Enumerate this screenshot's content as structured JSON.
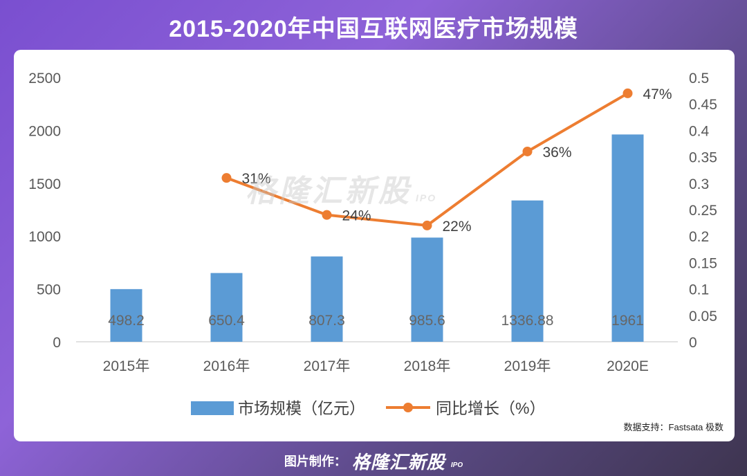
{
  "header": {
    "title": "2015-2020年中国互联网医疗市场规模"
  },
  "source": "数据支持：Fastsata 极数",
  "footer": {
    "label": "图片制作：",
    "brand": "格隆汇新股",
    "brand_sub": "IPO"
  },
  "watermark": {
    "text": "格隆汇新股",
    "sub": "IPO"
  },
  "colors": {
    "bar": "#5b9bd5",
    "line": "#ed7d31",
    "axis_text": "#595959",
    "axis_line": "#d9d9d9"
  },
  "chart_data": {
    "type": "bar",
    "categories": [
      "2015年",
      "2016年",
      "2017年",
      "2018年",
      "2019年",
      "2020E"
    ],
    "series": [
      {
        "name": "市场规模（亿元）",
        "type": "bar",
        "axis": "left",
        "values": [
          498.2,
          650.4,
          807.3,
          985.6,
          1336.88,
          1961
        ],
        "value_labels": [
          "498.2",
          "650.4",
          "807.3",
          "985.6",
          "1336.88",
          "1961"
        ]
      },
      {
        "name": "同比增长（%）",
        "type": "line",
        "axis": "right",
        "values": [
          null,
          0.31,
          0.24,
          0.22,
          0.36,
          0.47
        ],
        "value_labels": [
          "",
          "31%",
          "24%",
          "22%",
          "36%",
          "47%"
        ]
      }
    ],
    "y_left": {
      "min": 0,
      "max": 2500,
      "ticks": [
        "0",
        "500",
        "1000",
        "1500",
        "2000",
        "2500"
      ]
    },
    "y_right": {
      "min": 0,
      "max": 0.5,
      "ticks": [
        "0",
        "0.05",
        "0.1",
        "0.15",
        "0.2",
        "0.25",
        "0.3",
        "0.35",
        "0.4",
        "0.45",
        "0.5"
      ]
    },
    "legend_position": "bottom",
    "grid": false
  }
}
